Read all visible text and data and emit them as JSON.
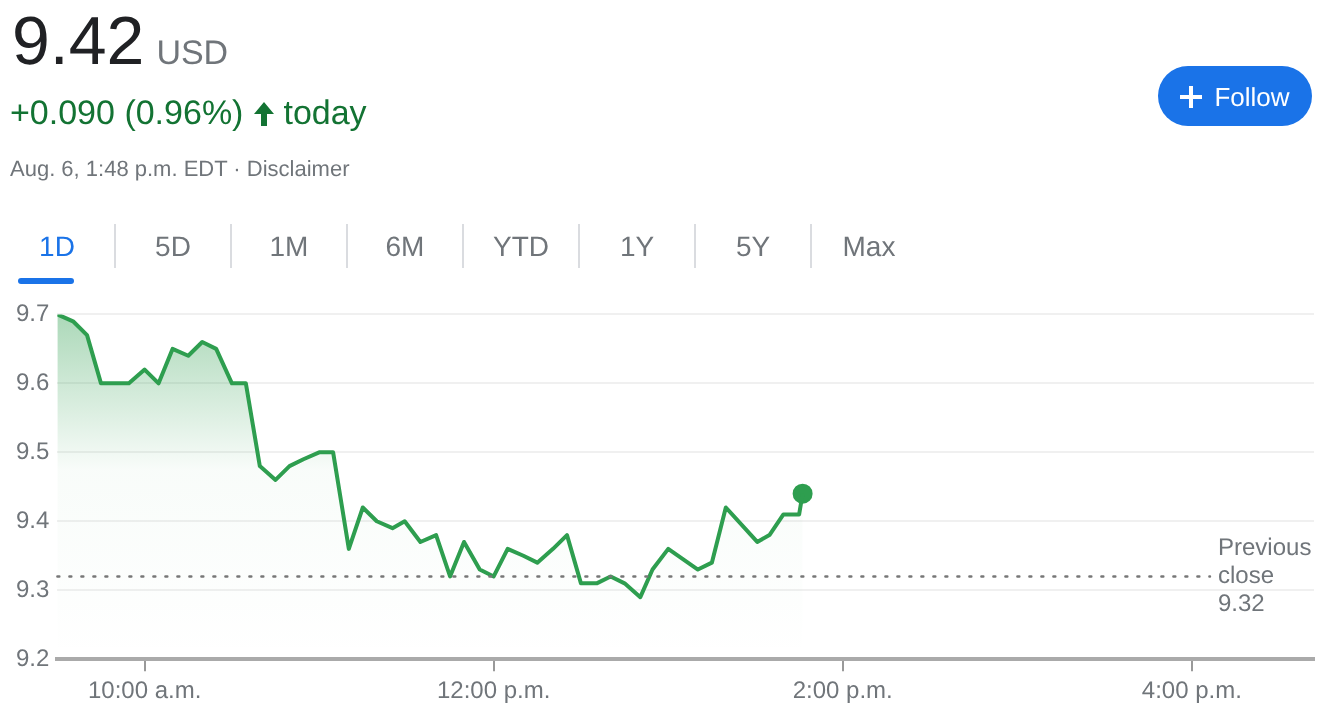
{
  "chart_data": {
    "type": "area",
    "title": "9.42 USD",
    "subtitle": "+0.090 (0.96%) today",
    "annotations": [
      "Aug. 6, 1:48 p.m. EDT · Disclaimer",
      "Follow",
      "1D",
      "5D",
      "1M",
      "6M",
      "YTD",
      "1Y",
      "5Y",
      "Max"
    ],
    "xlim": [
      9.5,
      16.7
    ],
    "xticks": [
      {
        "value": 10,
        "label": "10:00 a.m."
      },
      {
        "value": 12,
        "label": "12:00 p.m."
      },
      {
        "value": 14,
        "label": "2:00 p.m."
      },
      {
        "value": 16,
        "label": "4:00 p.m."
      }
    ],
    "ylim": [
      9.2,
      9.7
    ],
    "yticks": [
      9.2,
      9.3,
      9.4,
      9.5,
      9.6,
      9.7
    ],
    "grid": "y",
    "legend": false,
    "marker": "none",
    "series": [
      {
        "color": "#2e9e4f",
        "x": [
          9.5,
          9.59,
          9.67,
          9.75,
          9.83,
          9.91,
          10.0,
          10.08,
          10.16,
          10.25,
          10.33,
          10.41,
          10.5,
          10.58,
          10.66,
          10.75,
          10.83,
          10.91,
          11.0,
          11.08,
          11.17,
          11.25,
          11.33,
          11.42,
          11.49,
          11.58,
          11.67,
          11.75,
          11.83,
          11.92,
          12.0,
          12.08,
          12.17,
          12.25,
          12.34,
          12.42,
          12.5,
          12.59,
          12.67,
          12.75,
          12.84,
          12.91,
          13.0,
          13.17,
          13.25,
          13.33,
          13.51,
          13.58,
          13.66,
          13.75,
          13.77
        ],
        "values": [
          9.7,
          9.69,
          9.67,
          9.6,
          9.6,
          9.6,
          9.62,
          9.6,
          9.65,
          9.64,
          9.66,
          9.65,
          9.6,
          9.6,
          9.48,
          9.46,
          9.48,
          9.49,
          9.5,
          9.5,
          9.36,
          9.42,
          9.4,
          9.39,
          9.4,
          9.37,
          9.38,
          9.32,
          9.37,
          9.33,
          9.32,
          9.36,
          9.35,
          9.34,
          9.36,
          9.38,
          9.31,
          9.31,
          9.32,
          9.31,
          9.29,
          9.33,
          9.36,
          9.33,
          9.34,
          9.42,
          9.37,
          9.38,
          9.41,
          9.41,
          9.44
        ]
      },
      {
        "type": "scatter",
        "color": "#2e9e4f",
        "marker": "circle",
        "x": [
          13.77
        ],
        "values": [
          9.44
        ]
      }
    ],
    "ref_lines": [
      {
        "axis": "y",
        "value": 9.32,
        "label": "Previous close 9.32",
        "color": "#777777",
        "line_style": "dotted"
      }
    ]
  }
}
